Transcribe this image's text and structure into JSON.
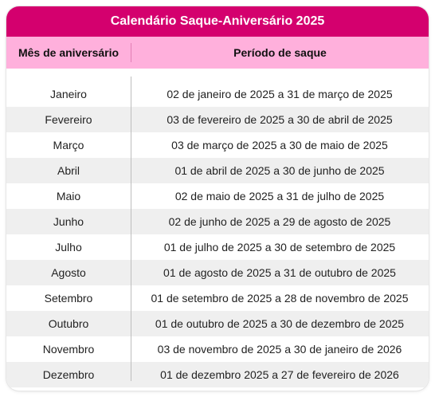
{
  "title": "Calendário Saque-Aniversário 2025",
  "headers": {
    "month": "Mês de aniversário",
    "period": "Período de saque"
  },
  "rows": [
    {
      "month": "Janeiro",
      "period": "02 de janeiro de 2025 a 31 de março de 2025"
    },
    {
      "month": "Fevereiro",
      "period": "03 de fevereiro de 2025 a 30 de abril de 2025"
    },
    {
      "month": "Março",
      "period": "03 de março de 2025 a 30 de maio de 2025"
    },
    {
      "month": "Abril",
      "period": "01 de abril de 2025 a 30 de junho de 2025"
    },
    {
      "month": "Maio",
      "period": "02 de maio de 2025 a 31 de julho de 2025"
    },
    {
      "month": "Junho",
      "period": "02 de junho de 2025 a 29 de agosto de 2025"
    },
    {
      "month": "Julho",
      "period": "01 de julho de 2025 a 30 de setembro de 2025"
    },
    {
      "month": "Agosto",
      "period": "01 de agosto de 2025 a 31 de outubro de 2025"
    },
    {
      "month": "Setembro",
      "period": "01 de setembro de 2025 a 28 de novembro de 2025"
    },
    {
      "month": "Outubro",
      "period": "01 de outubro de 2025 a 30 de dezembro de 2025"
    },
    {
      "month": "Novembro",
      "period": "03 de novembro de 2025 a 30 de janeiro de 2026"
    },
    {
      "month": "Dezembro",
      "period": "01 de dezembro 2025 a 27 de fevereiro de 2026"
    }
  ],
  "colors": {
    "title_bg": "#d4006e",
    "header_bg": "#ffb0dc",
    "alt_row_bg": "#efefef"
  }
}
